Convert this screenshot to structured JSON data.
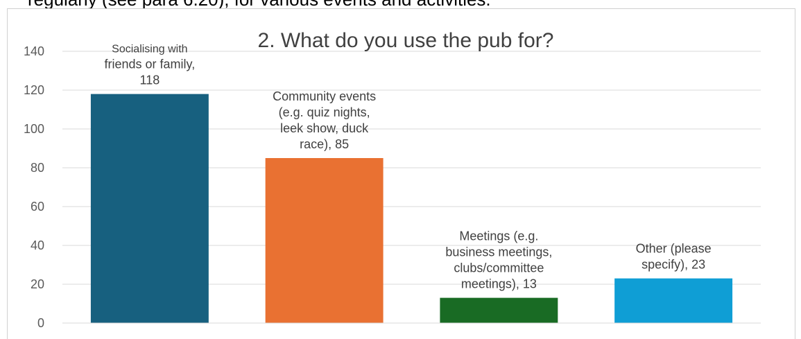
{
  "header": {
    "text": "regularly (see para 6.20), for various events and activities."
  },
  "chart_data": {
    "type": "bar",
    "title": "2. What do you use the pub for?",
    "xlabel": "",
    "ylabel": "",
    "ylim": [
      0,
      140
    ],
    "yticks": [
      0,
      20,
      40,
      60,
      80,
      100,
      120,
      140
    ],
    "grid": true,
    "categories": [
      "Socialising with friends or family",
      "Community events (e.g. quiz nights, leek show, duck race)",
      "Meetings (e.g. business meetings, clubs/committee meetings)",
      "Other (please specify)"
    ],
    "values": [
      118,
      85,
      13,
      23
    ],
    "colors": [
      "#17607f",
      "#e97132",
      "#196b24",
      "#0f9ed5"
    ],
    "data_labels": [
      [
        "Socialising with",
        "friends or family,",
        "118"
      ],
      [
        "Community events",
        "(e.g. quiz nights,",
        "leek show, duck",
        "race), 85"
      ],
      [
        "Meetings (e.g.",
        "business meetings,",
        "clubs/committee",
        "meetings), 13"
      ],
      [
        "Other (please",
        "specify), 23"
      ]
    ]
  }
}
